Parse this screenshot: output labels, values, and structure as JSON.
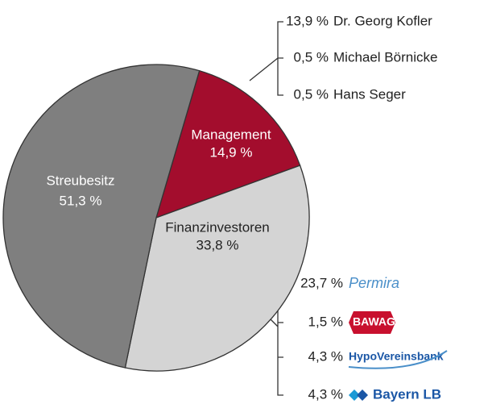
{
  "chart_data": {
    "type": "pie",
    "categories": [
      "Management",
      "Finanzinvestoren",
      "Streubesitz"
    ],
    "values": [
      14.9,
      33.8,
      51.3
    ],
    "value_labels": [
      "14,9 %",
      "33,8 %",
      "51,3 %"
    ],
    "colors": [
      "#a30d2d",
      "#d4d4d4",
      "#7f7f7f"
    ],
    "breakdowns": [
      {
        "names": [
          "Dr. Georg Kofler",
          "Michael Börnicke",
          "Hans Seger"
        ],
        "values": [
          13.9,
          0.5,
          0.5
        ],
        "value_labels": [
          "13,9 %",
          "0,5 %",
          "0,5 %"
        ]
      },
      {
        "names": [
          "Permira",
          "BAWAG",
          "HypoVereinsbank",
          "Bayern LB"
        ],
        "values": [
          23.7,
          1.5,
          4.3,
          4.3
        ],
        "value_labels": [
          "23,7 %",
          "1,5 %",
          "4,3 %",
          "4,3 %"
        ]
      }
    ]
  }
}
